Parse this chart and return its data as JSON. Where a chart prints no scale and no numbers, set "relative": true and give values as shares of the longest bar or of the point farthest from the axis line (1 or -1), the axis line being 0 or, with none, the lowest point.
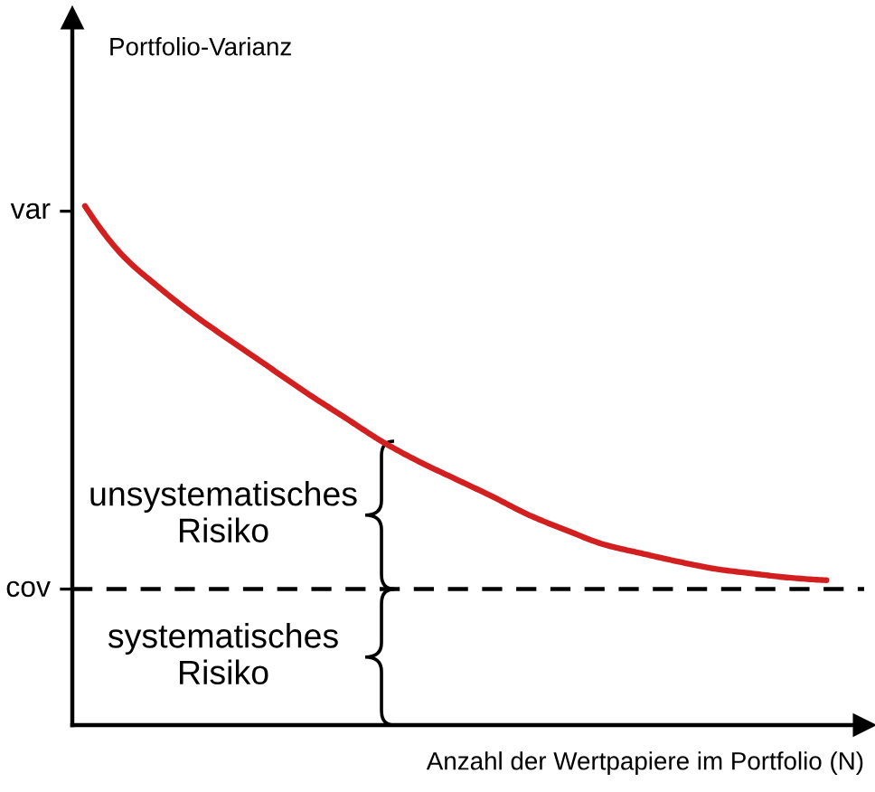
{
  "chart_data": {
    "type": "line",
    "relative": true,
    "xlabel": "Anzahl der Wertpapiere im Portfolio (N)",
    "categories": [
      null,
      null,
      null,
      null,
      null,
      null,
      null,
      null,
      null,
      null,
      null,
      null,
      null,
      null,
      null,
      null,
      null,
      null,
      null,
      null,
      null
    ],
    "values": [
      1.0,
      0.906,
      0.843,
      0.787,
      0.737,
      0.688,
      0.639,
      0.593,
      0.547,
      0.508,
      0.474,
      0.44,
      0.404,
      0.375,
      0.348,
      0.331,
      0.315,
      0.301,
      0.292,
      0.284,
      0.279
    ],
    "color": "#d21f1f",
    "ref_lines": [
      {
        "axis": "y",
        "value": 0.262,
        "label": "cov",
        "color": "#000000",
        "line_style": "dashed"
      }
    ],
    "annotations": [
      "Portfolio-Varianz",
      "var",
      "unsystematisches\nRisiko",
      "systematisches\nRisiko"
    ]
  }
}
